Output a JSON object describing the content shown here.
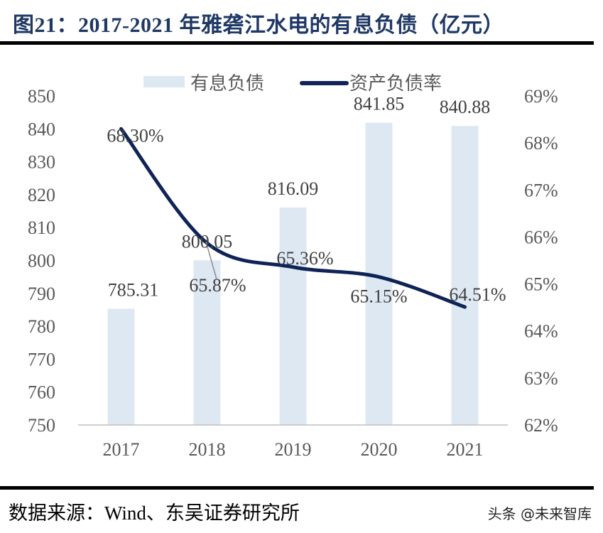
{
  "title": "图21：2017-2021 年雅砻江水电的有息负债（亿元）",
  "source": "数据来源：Wind、东吴证券研究所",
  "watermark": "头条 @未来智库",
  "chart_data": {
    "type": "bar+line",
    "categories": [
      "2017",
      "2018",
      "2019",
      "2020",
      "2021"
    ],
    "series": [
      {
        "name": "有息负债",
        "type": "bar",
        "axis": "left",
        "color": "#dde8f3",
        "values": [
          785.31,
          800.05,
          816.09,
          841.85,
          840.88
        ],
        "labels": [
          "785.31",
          "800.05",
          "816.09",
          "841.85",
          "840.88"
        ]
      },
      {
        "name": "资产负债率",
        "type": "line",
        "axis": "right",
        "color": "#0f2356",
        "values": [
          68.3,
          65.87,
          65.36,
          65.15,
          64.51
        ],
        "labels": [
          "68.30%",
          "65.87%",
          "65.36%",
          "65.15%",
          "64.51%"
        ]
      }
    ],
    "left_axis": {
      "ylim": [
        750,
        850
      ],
      "ticks": [
        "750",
        "760",
        "770",
        "780",
        "790",
        "800",
        "810",
        "820",
        "830",
        "840",
        "850"
      ]
    },
    "right_axis": {
      "ylim": [
        62,
        69
      ],
      "ticks": [
        "62%",
        "63%",
        "64%",
        "65%",
        "66%",
        "67%",
        "68%",
        "69%"
      ]
    },
    "legend": "top",
    "grid": false
  }
}
